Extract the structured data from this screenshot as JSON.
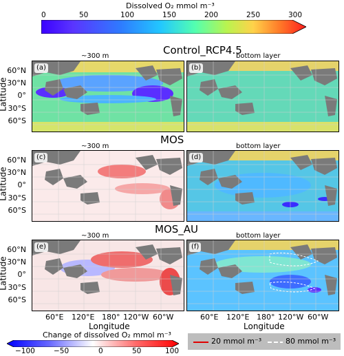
{
  "top_colorbar": {
    "title": "Dissolved O₂ mmol m⁻³",
    "ticks": [
      "0",
      "50",
      "100",
      "150",
      "200",
      "250",
      "300"
    ],
    "colors": [
      "#3b00ff",
      "#5a35ff",
      "#2e7bff",
      "#22c7ff",
      "#53ffb0",
      "#b9f44f",
      "#ffd24a",
      "#ff7a28",
      "#ff1d1d"
    ]
  },
  "rows": [
    {
      "title": "Control_RCP4.5",
      "left_col": "~300 m",
      "right_col": "bottom layer",
      "tags": [
        "(a)",
        "(b)"
      ]
    },
    {
      "title": "MOS",
      "left_col": "~300 m",
      "right_col": "bottom layer",
      "tags": [
        "(c)",
        "(d)"
      ]
    },
    {
      "title": "MOS_AU",
      "left_col": "~300 m",
      "right_col": "bottom layer",
      "tags": [
        "(e)",
        "(f)"
      ]
    }
  ],
  "axes": {
    "ylabel": "Latitude",
    "xlabel": "Longitude",
    "lat_ticks_top": [
      "60°N",
      "30°N",
      "0°",
      "30°S",
      "60°S"
    ],
    "lat_ticks_mid": [
      "60°N",
      "30°N",
      "0°",
      "30°S",
      "60°S"
    ],
    "lat_ticks_bottom": [
      "60°N",
      "30°N",
      "0°",
      "30°S",
      "60°S"
    ],
    "lon_ticks": [
      "60°E",
      "120°E",
      "180°",
      "120°W",
      "60°W"
    ]
  },
  "bottom_colorbar": {
    "title": "Change of dissolved O₂ mmol m⁻³",
    "ticks": [
      "−100",
      "−50",
      "0",
      "50",
      "100"
    ],
    "colors": [
      "#0000ff",
      "#6a6aff",
      "#ffffff",
      "#ff6a6a",
      "#ff0000"
    ]
  },
  "legend": {
    "red_label": "20 mmol m⁻³",
    "white_label": "80 mmol m⁻³",
    "red_color": "#e00000",
    "white_color": "#ffffff"
  },
  "chart_data": [
    {
      "type": "heatmap",
      "title": "Control_RCP4.5",
      "panels": [
        "(a) ~300 m",
        "(b) bottom layer"
      ],
      "colorbar": {
        "label": "Dissolved O₂ mmol m⁻³",
        "range": [
          0,
          300
        ],
        "ticks": [
          0,
          50,
          100,
          150,
          200,
          250,
          300
        ]
      },
      "xlabel": "",
      "ylabel": "Latitude",
      "lat_ticks": [
        "60°N",
        "30°N",
        "0°",
        "30°S",
        "60°S"
      ]
    },
    {
      "type": "heatmap",
      "title": "MOS",
      "panels": [
        "(c) ~300 m",
        "(d) bottom layer"
      ],
      "colorbar": {
        "label": "Change of dissolved O₂ mmol m⁻³",
        "range": [
          -100,
          100
        ],
        "ticks": [
          -100,
          -50,
          0,
          50,
          100
        ]
      },
      "xlabel": "",
      "ylabel": "Latitude",
      "lat_ticks": [
        "60°N",
        "30°N",
        "0°",
        "30°S",
        "60°S"
      ]
    },
    {
      "type": "heatmap",
      "title": "MOS_AU",
      "panels": [
        "(e) ~300 m",
        "(f) bottom layer"
      ],
      "colorbar": {
        "label": "Change of dissolved O₂ mmol m⁻³",
        "range": [
          -100,
          100
        ],
        "ticks": [
          -100,
          -50,
          0,
          50,
          100
        ]
      },
      "xlabel": "Longitude",
      "ylabel": "Latitude",
      "lat_ticks": [
        "60°N",
        "30°N",
        "0°",
        "30°S",
        "60°S"
      ],
      "lon_ticks": [
        "60°E",
        "120°E",
        "180°",
        "120°W",
        "60°W"
      ],
      "contours": [
        {
          "value": 20,
          "unit": "mmol m⁻³",
          "color": "red"
        },
        {
          "value": 80,
          "unit": "mmol m⁻³",
          "color": "white",
          "style": "dashed"
        }
      ]
    }
  ]
}
